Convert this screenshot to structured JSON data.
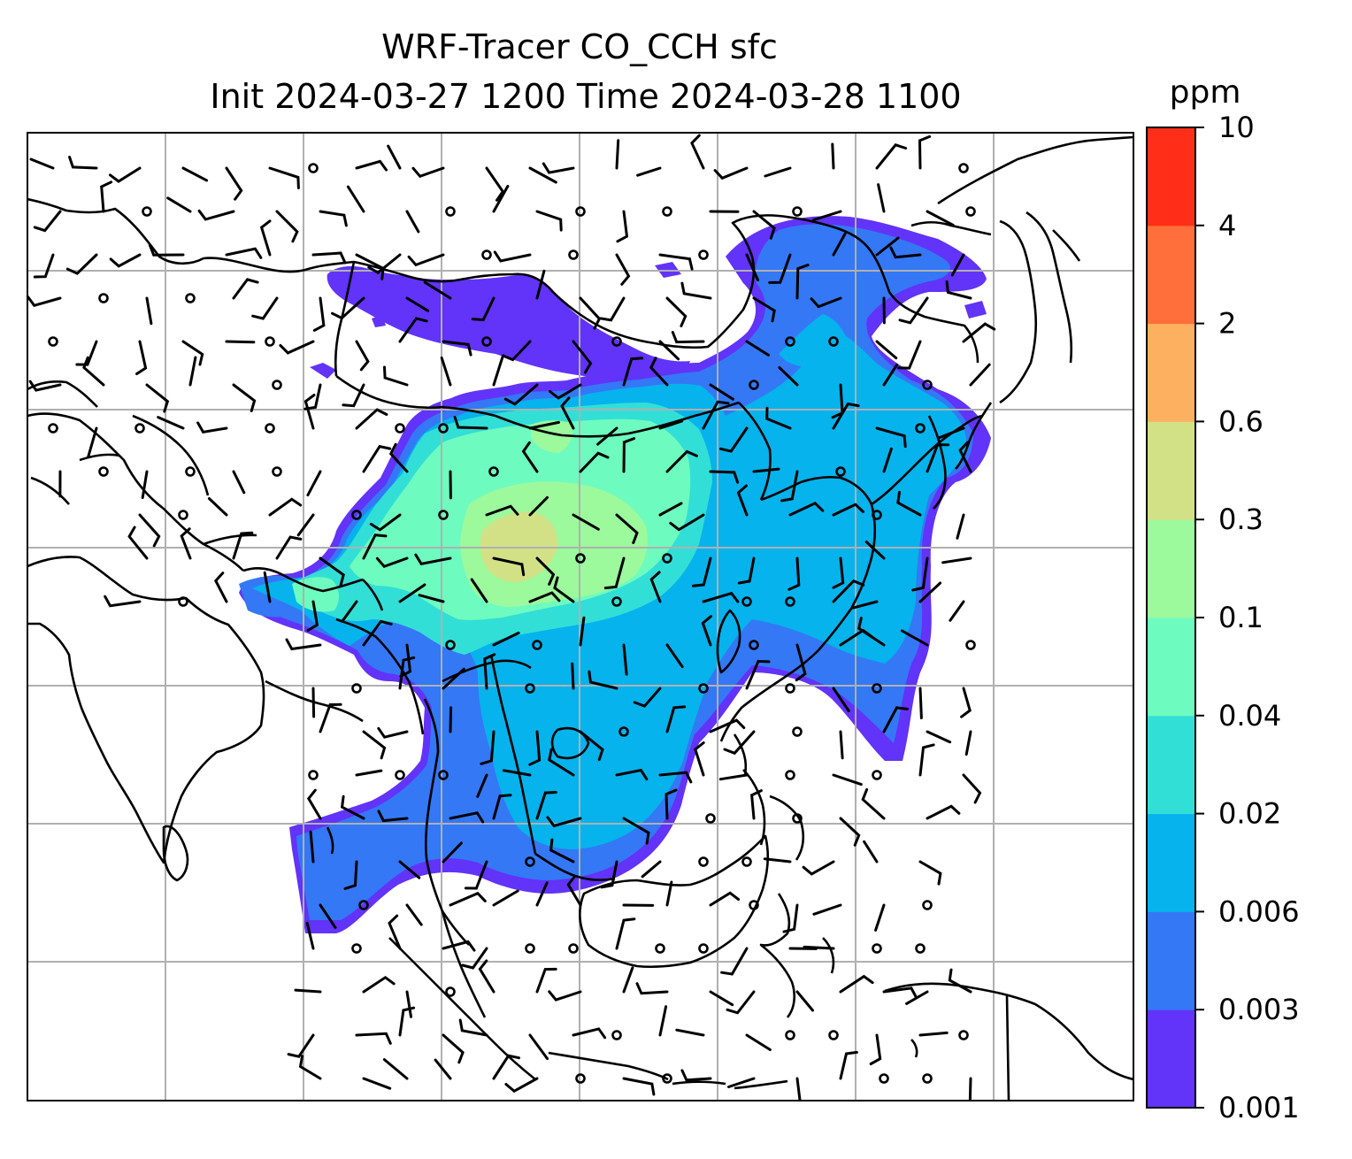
{
  "title": {
    "line1": "WRF-Tracer CO_CCH sfc",
    "line2": "Init 2024-03-27 1200 Time 2024-03-28 1100"
  },
  "colorbar": {
    "unit": "ppm",
    "levels": [
      "0.001",
      "0.003",
      "0.006",
      "0.02",
      "0.04",
      "0.1",
      "0.3",
      "0.6",
      "2",
      "4",
      "10"
    ],
    "colors": [
      "#6233f8",
      "#3478f5",
      "#06b3ec",
      "#32dfd6",
      "#6dfbbf",
      "#9cf99c",
      "#d2e186",
      "#feb061",
      "#fe6f3b",
      "#fe2e18"
    ]
  },
  "map": {
    "grid": "on",
    "coastline_color": "#000000",
    "grid_color": "#b0b0b0"
  }
}
